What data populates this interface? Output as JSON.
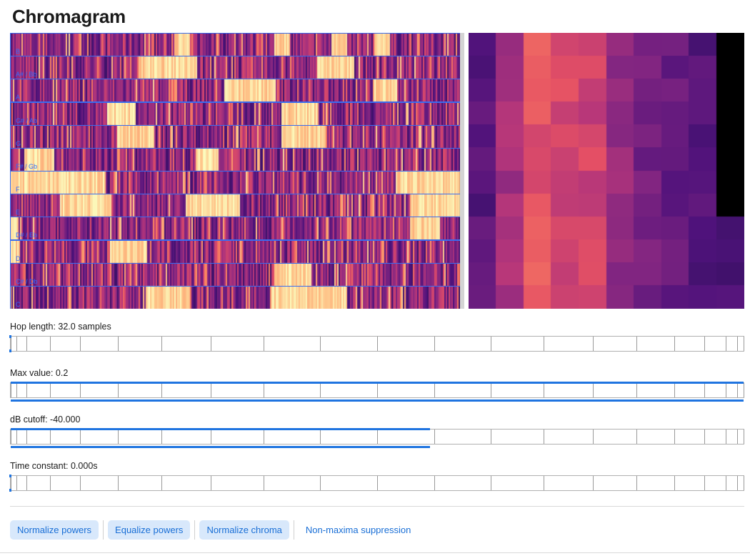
{
  "page": {
    "title": "Chromagram"
  },
  "chromagram": {
    "labels": [
      "B",
      "A# / Bb",
      "A",
      "G# / Ab",
      "G",
      "F# / Gb",
      "F",
      "E",
      "D# / Eb",
      "D",
      "C# / Db",
      "C"
    ]
  },
  "controls": [
    {
      "id": "hop",
      "label": "Hop length: 32.0 samples",
      "value": 0
    },
    {
      "id": "maxval",
      "label": "Max value: 0.2",
      "value": 1.0
    },
    {
      "id": "dbcutoff",
      "label": "dB cutoff: -40.000",
      "value": 0.572
    },
    {
      "id": "timeconst",
      "label": "Time constant: 0.000s",
      "value": 0
    }
  ],
  "buttons": [
    {
      "label": "Normalize powers",
      "active": true
    },
    {
      "label": "Equalize powers",
      "active": true
    },
    {
      "label": "Normalize chroma",
      "active": true
    },
    {
      "label": "Non-maxima suppression",
      "active": false
    }
  ]
}
